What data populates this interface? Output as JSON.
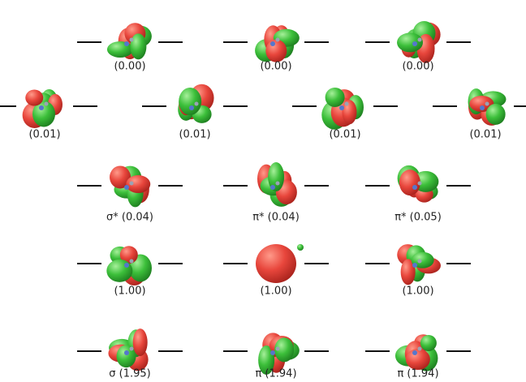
{
  "rows": [
    [
      "(0.00)",
      "(0.00)",
      "(0.00)"
    ],
    [
      "(0.01)",
      "(0.01)",
      "(0.01)",
      "(0.01)"
    ],
    [
      "σ* (0.04)",
      "π* (0.04)",
      "π* (0.05)"
    ],
    [
      "(1.00)",
      "(1.00)",
      "(1.00)"
    ],
    [
      "σ (1.95)",
      "π (1.94)",
      "π (1.94)"
    ]
  ]
}
